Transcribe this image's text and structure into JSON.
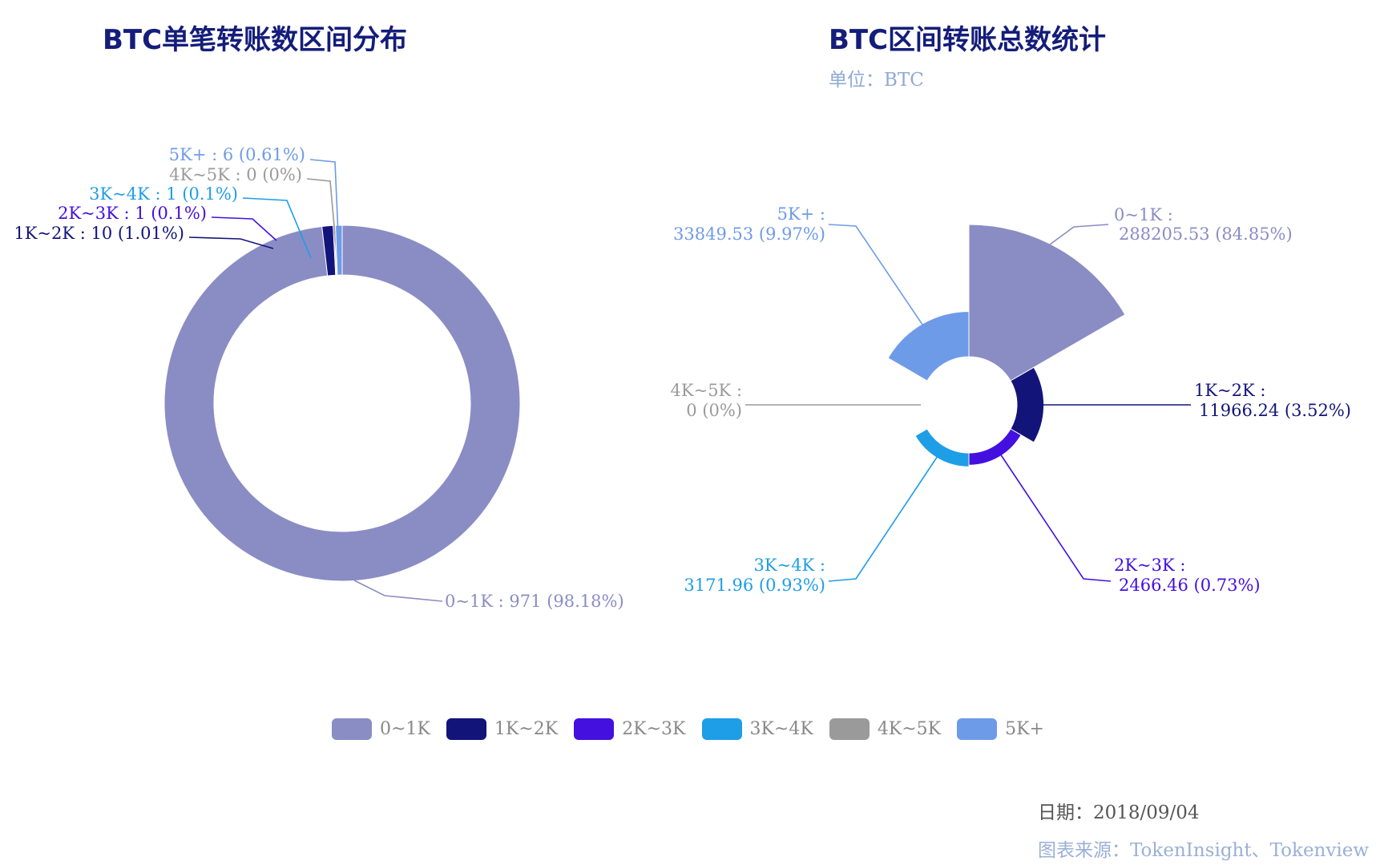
{
  "colors": {
    "0~1K": "#8a8cc4",
    "1K~2K": "#13147a",
    "2K~3K": "#4410e0",
    "3K~4K": "#1e9ee6",
    "4K~5K": "#9a9a9a",
    "5K+": "#6e9be8"
  },
  "chart_data": [
    {
      "type": "pie",
      "variant": "donut",
      "title": "BTC单笔转账数区间分布",
      "slices": [
        {
          "name": "0~1K",
          "value": 971,
          "percent": "98.18%",
          "label": "0~1K : 971 (98.18%)"
        },
        {
          "name": "1K~2K",
          "value": 10,
          "percent": "1.01%",
          "label": "1K~2K : 10 (1.01%)"
        },
        {
          "name": "2K~3K",
          "value": 1,
          "percent": "0.1%",
          "label": "2K~3K : 1 (0.1%)"
        },
        {
          "name": "3K~4K",
          "value": 1,
          "percent": "0.1%",
          "label": "3K~4K : 1 (0.1%)"
        },
        {
          "name": "4K~5K",
          "value": 0,
          "percent": "0%",
          "label": "4K~5K : 0 (0%)"
        },
        {
          "name": "5K+",
          "value": 6,
          "percent": "0.61%",
          "label": "5K+ : 6 (0.61%)"
        }
      ]
    },
    {
      "type": "pie",
      "variant": "rose",
      "title": "BTC区间转账总数统计",
      "subtitle": "单位：BTC",
      "slices": [
        {
          "name": "0~1K",
          "value": 288205.53,
          "percent": "84.85%",
          "label_line1": "0~1K :",
          "label_line2": "288205.53 (84.85%)"
        },
        {
          "name": "1K~2K",
          "value": 11966.24,
          "percent": "3.52%",
          "label_line1": "1K~2K :",
          "label_line2": "11966.24 (3.52%)"
        },
        {
          "name": "2K~3K",
          "value": 2466.46,
          "percent": "0.73%",
          "label_line1": "2K~3K :",
          "label_line2": "2466.46 (0.73%)"
        },
        {
          "name": "3K~4K",
          "value": 3171.96,
          "percent": "0.93%",
          "label_line1": "3K~4K :",
          "label_line2": "3171.96 (0.93%)"
        },
        {
          "name": "4K~5K",
          "value": 0,
          "percent": "0%",
          "label_line1": "4K~5K :",
          "label_line2": "0 (0%)"
        },
        {
          "name": "5K+",
          "value": 33849.53,
          "percent": "9.97%",
          "label_line1": "5K+ :",
          "label_line2": "33849.53 (9.97%)"
        }
      ]
    }
  ],
  "legend": [
    "0~1K",
    "1K~2K",
    "2K~3K",
    "3K~4K",
    "4K~5K",
    "5K+"
  ],
  "footer": {
    "date_label": "日期：",
    "date_value": "2018/09/04",
    "source_label": "图表来源：",
    "source_value": "TokenInsight、Tokenview"
  }
}
